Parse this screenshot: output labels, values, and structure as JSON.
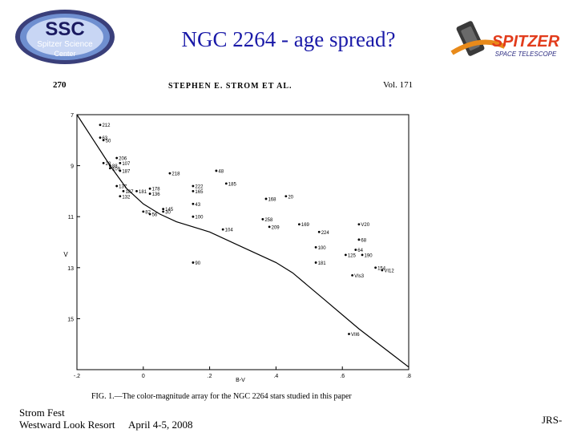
{
  "slide": {
    "title": "NGC 2264 - age spread?",
    "ssc_logo": {
      "line1": "SSC",
      "line2": "Spitzer Science",
      "line3": "Center"
    },
    "spitzer_logo": {
      "line1": "SPITZER",
      "line2": "SPACE TELESCOPE"
    },
    "footer_left_line1": "Strom Fest",
    "footer_left_line2": "Westward Look Resort",
    "footer_date": "April 4-5, 2008",
    "footer_right": "JRS-"
  },
  "paper": {
    "page_number": "270",
    "running_head": "STEPHEN E. STROM ET AL.",
    "volume": "Vol. 171",
    "caption": "FIG. 1.—The color-magnitude array for the NGC 2264 stars studied in this paper"
  },
  "chart_data": {
    "type": "scatter",
    "xlabel": "B-V",
    "ylabel": "V",
    "xlim": [
      -0.2,
      0.8
    ],
    "ylim": [
      17,
      7
    ],
    "x_ticks": [
      {
        "v": -0.2,
        "label": "-.2"
      },
      {
        "v": 0.0,
        "label": "0"
      },
      {
        "v": 0.2,
        "label": ".2"
      },
      {
        "v": 0.4,
        "label": ".4"
      },
      {
        "v": 0.6,
        "label": ".6"
      },
      {
        "v": 0.8,
        "label": ".8"
      }
    ],
    "y_ticks": [
      {
        "v": 7,
        "label": "7"
      },
      {
        "v": 9,
        "label": "9"
      },
      {
        "v": 11,
        "label": "11"
      },
      {
        "v": 13,
        "label": "13"
      },
      {
        "v": 15,
        "label": "15"
      }
    ],
    "curve": [
      [
        -0.2,
        7.0
      ],
      [
        -0.15,
        8.0
      ],
      [
        -0.1,
        9.0
      ],
      [
        -0.05,
        9.9
      ],
      [
        0.0,
        10.5
      ],
      [
        0.05,
        10.9
      ],
      [
        0.1,
        11.2
      ],
      [
        0.2,
        11.6
      ],
      [
        0.3,
        12.2
      ],
      [
        0.4,
        12.8
      ],
      [
        0.45,
        13.2
      ],
      [
        0.55,
        14.3
      ],
      [
        0.65,
        15.4
      ],
      [
        0.75,
        16.4
      ],
      [
        0.8,
        16.9
      ]
    ],
    "points": [
      {
        "x": -0.13,
        "y": 7.4,
        "label": "212"
      },
      {
        "x": -0.13,
        "y": 7.9,
        "label": "63"
      },
      {
        "x": -0.12,
        "y": 8.0,
        "label": "50"
      },
      {
        "x": -0.08,
        "y": 8.7,
        "label": "206"
      },
      {
        "x": -0.07,
        "y": 8.9,
        "label": "107"
      },
      {
        "x": -0.12,
        "y": 8.9,
        "label": "23"
      },
      {
        "x": -0.1,
        "y": 9.0,
        "label": "88"
      },
      {
        "x": -0.1,
        "y": 9.1,
        "label": "109"
      },
      {
        "x": -0.07,
        "y": 9.2,
        "label": "187"
      },
      {
        "x": -0.08,
        "y": 9.8,
        "label": "137"
      },
      {
        "x": -0.06,
        "y": 10.0,
        "label": "187"
      },
      {
        "x": -0.02,
        "y": 10.0,
        "label": "181"
      },
      {
        "x": -0.07,
        "y": 10.2,
        "label": "132"
      },
      {
        "x": 0.02,
        "y": 9.9,
        "label": "178"
      },
      {
        "x": 0.02,
        "y": 10.1,
        "label": "136"
      },
      {
        "x": 0.06,
        "y": 10.7,
        "label": "145"
      },
      {
        "x": 0.06,
        "y": 10.8,
        "label": "30"
      },
      {
        "x": 0.0,
        "y": 10.8,
        "label": "82"
      },
      {
        "x": 0.02,
        "y": 10.9,
        "label": "56"
      },
      {
        "x": 0.08,
        "y": 9.3,
        "label": "218"
      },
      {
        "x": 0.15,
        "y": 9.8,
        "label": "222"
      },
      {
        "x": 0.15,
        "y": 10.0,
        "label": "165"
      },
      {
        "x": 0.15,
        "y": 10.5,
        "label": "43"
      },
      {
        "x": 0.15,
        "y": 11.0,
        "label": "100"
      },
      {
        "x": 0.22,
        "y": 9.2,
        "label": "48"
      },
      {
        "x": 0.25,
        "y": 9.7,
        "label": "185"
      },
      {
        "x": 0.24,
        "y": 11.5,
        "label": "104"
      },
      {
        "x": 0.37,
        "y": 10.3,
        "label": "168"
      },
      {
        "x": 0.43,
        "y": 10.2,
        "label": "20"
      },
      {
        "x": 0.36,
        "y": 11.1,
        "label": "258"
      },
      {
        "x": 0.38,
        "y": 11.4,
        "label": "209"
      },
      {
        "x": 0.47,
        "y": 11.3,
        "label": "169"
      },
      {
        "x": 0.53,
        "y": 11.6,
        "label": "224"
      },
      {
        "x": 0.52,
        "y": 12.2,
        "label": "100"
      },
      {
        "x": 0.65,
        "y": 11.3,
        "label": "V20"
      },
      {
        "x": 0.65,
        "y": 11.9,
        "label": "68"
      },
      {
        "x": 0.64,
        "y": 12.3,
        "label": "64"
      },
      {
        "x": 0.61,
        "y": 12.5,
        "label": "125"
      },
      {
        "x": 0.66,
        "y": 12.5,
        "label": "190"
      },
      {
        "x": 0.52,
        "y": 12.8,
        "label": "181"
      },
      {
        "x": 0.7,
        "y": 13.0,
        "label": "154"
      },
      {
        "x": 0.72,
        "y": 13.1,
        "label": "VI12"
      },
      {
        "x": 0.63,
        "y": 13.3,
        "label": "VIs3"
      },
      {
        "x": 0.15,
        "y": 12.8,
        "label": "90"
      },
      {
        "x": 0.62,
        "y": 15.6,
        "label": "VII6"
      }
    ]
  }
}
